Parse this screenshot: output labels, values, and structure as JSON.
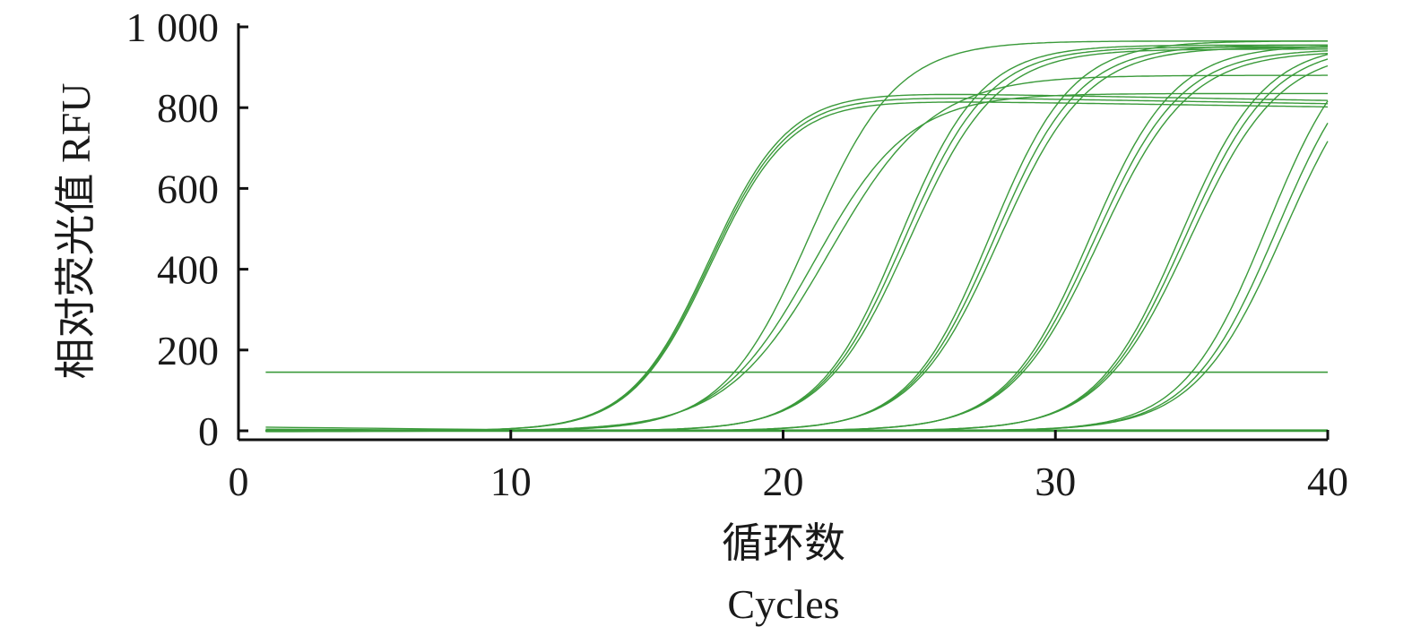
{
  "chart_data": {
    "type": "line",
    "xlabel_cn": "循环数",
    "xlabel_en": "Cycles",
    "ylabel": "相对荧光值 RFU",
    "xlim": [
      0,
      40
    ],
    "ylim": [
      0,
      1000
    ],
    "x_ticks": [
      0,
      10,
      20,
      30,
      40
    ],
    "x_tick_labels": [
      "0",
      "10",
      "20",
      "30",
      "40"
    ],
    "y_ticks": [
      0,
      200,
      400,
      600,
      800,
      1000
    ],
    "y_tick_labels": [
      "0",
      "200",
      "400",
      "600",
      "800",
      "1 000"
    ],
    "grid": false,
    "line_color": "#3a9a3a",
    "threshold": 145,
    "cycles": [
      1,
      40
    ],
    "curves": [
      {
        "ct": 15.0,
        "plateau": 840,
        "peak_decline": 0.55,
        "rise": 1.45
      },
      {
        "ct": 15.05,
        "plateau": 830,
        "peak_decline": 0.5,
        "rise": 1.45
      },
      {
        "ct": 15.1,
        "plateau": 820,
        "peak_decline": 0.45,
        "rise": 1.45
      },
      {
        "ct": 18.2,
        "plateau": 965,
        "peak_decline": 0.0,
        "rise": 1.6
      },
      {
        "ct": 18.4,
        "plateau": 835,
        "peak_decline": 0.0,
        "rise": 1.75
      },
      {
        "ct": 18.6,
        "plateau": 880,
        "peak_decline": 0.0,
        "rise": 1.9
      },
      {
        "ct": 21.7,
        "plateau": 955,
        "peak_decline": 0.0,
        "rise": 1.5
      },
      {
        "ct": 21.8,
        "plateau": 950,
        "peak_decline": 0.0,
        "rise": 1.55
      },
      {
        "ct": 21.9,
        "plateau": 945,
        "peak_decline": 0.0,
        "rise": 1.6
      },
      {
        "ct": 25.0,
        "plateau": 965,
        "peak_decline": 0.0,
        "rise": 1.5
      },
      {
        "ct": 25.1,
        "plateau": 955,
        "peak_decline": 0.0,
        "rise": 1.55
      },
      {
        "ct": 25.2,
        "plateau": 950,
        "peak_decline": 0.0,
        "rise": 1.6
      },
      {
        "ct": 28.6,
        "plateau": 955,
        "peak_decline": 0.0,
        "rise": 1.55
      },
      {
        "ct": 28.7,
        "plateau": 945,
        "peak_decline": 0.0,
        "rise": 1.6
      },
      {
        "ct": 28.8,
        "plateau": 940,
        "peak_decline": 0.0,
        "rise": 1.65
      },
      {
        "ct": 31.9,
        "plateau": 960,
        "peak_decline": 0.0,
        "rise": 1.55
      },
      {
        "ct": 32.0,
        "plateau": 955,
        "peak_decline": 0.0,
        "rise": 1.6
      },
      {
        "ct": 32.1,
        "plateau": 945,
        "peak_decline": 0.0,
        "rise": 1.65
      },
      {
        "ct": 35.0,
        "plateau": 1010,
        "peak_decline": 0.0,
        "rise": 1.55
      },
      {
        "ct": 35.3,
        "plateau": 1000,
        "peak_decline": 0.0,
        "rise": 1.6
      },
      {
        "ct": 35.5,
        "plateau": 990,
        "peak_decline": 0.0,
        "rise": 1.65
      }
    ],
    "flat_curves": [
      {
        "start": 9,
        "end": 2
      },
      {
        "start": 4,
        "end": 1
      },
      {
        "start": 2,
        "end": 0
      },
      {
        "start": -2,
        "end": -1
      }
    ]
  }
}
